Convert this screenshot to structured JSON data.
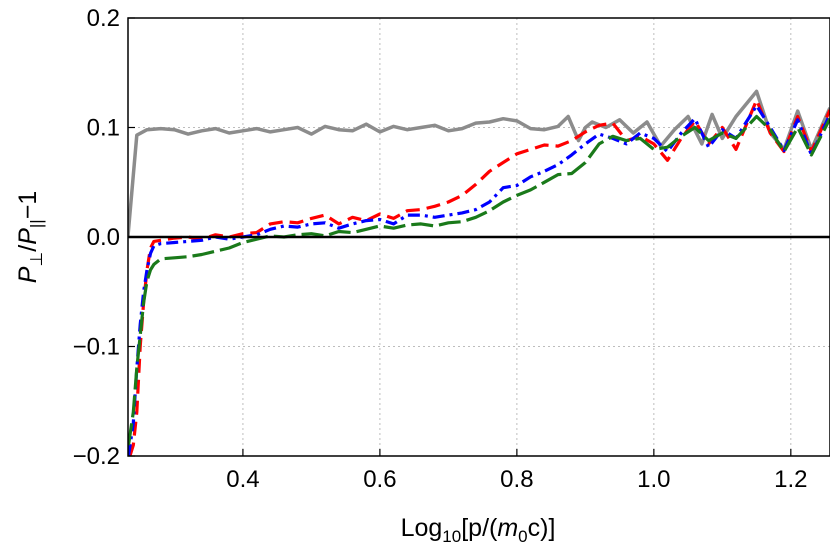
{
  "chart_data": {
    "type": "line",
    "title": "",
    "xlabel": {
      "base": "Log",
      "sub": "10",
      "rest_before_m": "[p/(",
      "m": "m",
      "m_sub": "0",
      "rest_after_m": "c)]"
    },
    "ylabel": {
      "p1": "P",
      "p1_sub": "⊥",
      "slash": "/",
      "p2": "P",
      "p2_sub": "||",
      "tail": "−1"
    },
    "xlim": [
      0.2322,
      1.2572
    ],
    "ylim": [
      -0.2,
      0.2
    ],
    "grid": true,
    "x_ticks": [
      {
        "value": 0.4,
        "label": "0.4"
      },
      {
        "value": 0.6,
        "label": "0.6"
      },
      {
        "value": 0.8,
        "label": "0.8"
      },
      {
        "value": 1.0,
        "label": "1.0"
      },
      {
        "value": 1.2,
        "label": "1.2"
      }
    ],
    "y_ticks": [
      {
        "value": 0.2,
        "label": "0.2"
      },
      {
        "value": 0.1,
        "label": "0.1"
      },
      {
        "value": 0.0,
        "label": "0.0"
      },
      {
        "value": -0.1,
        "label": "−0.1"
      },
      {
        "value": -0.2,
        "label": "−0.2"
      }
    ],
    "reference_line": {
      "y": 0.0,
      "color": "#000000"
    },
    "series": [
      {
        "name": "gray-solid",
        "color": "#8c8c8c",
        "dash": "",
        "x": [
          0.232,
          0.245,
          0.26,
          0.28,
          0.3,
          0.32,
          0.34,
          0.36,
          0.38,
          0.4,
          0.42,
          0.44,
          0.46,
          0.48,
          0.5,
          0.52,
          0.54,
          0.56,
          0.58,
          0.6,
          0.62,
          0.64,
          0.66,
          0.68,
          0.7,
          0.72,
          0.74,
          0.76,
          0.78,
          0.8,
          0.82,
          0.84,
          0.86,
          0.875,
          0.89,
          0.9,
          0.91,
          0.93,
          0.95,
          0.97,
          0.99,
          1.01,
          1.03,
          1.05,
          1.07,
          1.085,
          1.1,
          1.12,
          1.15,
          1.17,
          1.19,
          1.21,
          1.23,
          1.257
        ],
        "y": [
          0.0,
          0.093,
          0.098,
          0.099,
          0.098,
          0.094,
          0.097,
          0.099,
          0.095,
          0.097,
          0.099,
          0.096,
          0.098,
          0.1,
          0.094,
          0.101,
          0.098,
          0.097,
          0.103,
          0.096,
          0.101,
          0.098,
          0.1,
          0.102,
          0.097,
          0.099,
          0.104,
          0.105,
          0.108,
          0.106,
          0.099,
          0.098,
          0.101,
          0.11,
          0.088,
          0.1,
          0.105,
          0.1,
          0.107,
          0.095,
          0.105,
          0.083,
          0.098,
          0.11,
          0.085,
          0.112,
          0.09,
          0.11,
          0.133,
          0.095,
          0.08,
          0.115,
          0.08,
          0.118
        ]
      },
      {
        "name": "red-dashed",
        "color": "#ff0000",
        "dash": "14,7",
        "x": [
          0.235,
          0.24,
          0.245,
          0.25,
          0.255,
          0.26,
          0.265,
          0.27,
          0.28,
          0.3,
          0.32,
          0.34,
          0.36,
          0.38,
          0.4,
          0.42,
          0.44,
          0.46,
          0.48,
          0.5,
          0.52,
          0.54,
          0.56,
          0.58,
          0.6,
          0.62,
          0.64,
          0.66,
          0.68,
          0.7,
          0.72,
          0.74,
          0.76,
          0.78,
          0.8,
          0.82,
          0.84,
          0.86,
          0.88,
          0.9,
          0.92,
          0.94,
          0.96,
          0.98,
          1.0,
          1.02,
          1.04,
          1.06,
          1.08,
          1.1,
          1.12,
          1.15,
          1.17,
          1.19,
          1.21,
          1.23,
          1.257
        ],
        "y": [
          -0.2,
          -0.19,
          -0.16,
          -0.1,
          -0.06,
          -0.03,
          -0.01,
          -0.004,
          -0.003,
          -0.001,
          0.0,
          -0.002,
          0.002,
          0.0,
          0.003,
          0.004,
          0.012,
          0.014,
          0.013,
          0.017,
          0.02,
          0.012,
          0.018,
          0.015,
          0.021,
          0.017,
          0.024,
          0.025,
          0.028,
          0.032,
          0.038,
          0.048,
          0.06,
          0.068,
          0.076,
          0.08,
          0.084,
          0.083,
          0.088,
          0.096,
          0.102,
          0.104,
          0.088,
          0.092,
          0.085,
          0.07,
          0.09,
          0.106,
          0.085,
          0.1,
          0.08,
          0.125,
          0.095,
          0.078,
          0.11,
          0.078,
          0.116
        ]
      },
      {
        "name": "blue-dashdot",
        "color": "#0000ff",
        "dash": "12,5,3,5",
        "x": [
          0.233,
          0.24,
          0.245,
          0.25,
          0.255,
          0.26,
          0.265,
          0.27,
          0.28,
          0.3,
          0.32,
          0.34,
          0.36,
          0.38,
          0.4,
          0.42,
          0.44,
          0.46,
          0.48,
          0.5,
          0.52,
          0.54,
          0.56,
          0.58,
          0.6,
          0.62,
          0.64,
          0.66,
          0.68,
          0.7,
          0.72,
          0.74,
          0.76,
          0.78,
          0.8,
          0.82,
          0.84,
          0.86,
          0.88,
          0.9,
          0.92,
          0.94,
          0.96,
          0.98,
          1.0,
          1.02,
          1.04,
          1.06,
          1.08,
          1.1,
          1.12,
          1.15,
          1.17,
          1.19,
          1.21,
          1.23,
          1.257
        ],
        "y": [
          -0.2,
          -0.17,
          -0.12,
          -0.08,
          -0.05,
          -0.03,
          -0.015,
          -0.008,
          -0.006,
          -0.005,
          -0.004,
          -0.003,
          0.0,
          -0.002,
          0.0,
          0.002,
          0.007,
          0.01,
          0.009,
          0.012,
          0.013,
          0.008,
          0.012,
          0.015,
          0.016,
          0.012,
          0.02,
          0.02,
          0.018,
          0.02,
          0.022,
          0.025,
          0.032,
          0.045,
          0.047,
          0.055,
          0.06,
          0.066,
          0.075,
          0.085,
          0.094,
          0.09,
          0.085,
          0.095,
          0.09,
          0.078,
          0.095,
          0.108,
          0.082,
          0.098,
          0.09,
          0.12,
          0.1,
          0.079,
          0.107,
          0.075,
          0.112
        ]
      },
      {
        "name": "green-dashed",
        "color": "#1a7a1a",
        "dash": "22,6",
        "x": [
          0.233,
          0.24,
          0.245,
          0.25,
          0.255,
          0.26,
          0.265,
          0.27,
          0.28,
          0.3,
          0.32,
          0.34,
          0.36,
          0.38,
          0.4,
          0.42,
          0.44,
          0.46,
          0.48,
          0.5,
          0.52,
          0.54,
          0.56,
          0.58,
          0.6,
          0.62,
          0.64,
          0.66,
          0.68,
          0.7,
          0.72,
          0.74,
          0.76,
          0.78,
          0.8,
          0.82,
          0.84,
          0.86,
          0.88,
          0.9,
          0.92,
          0.94,
          0.96,
          0.98,
          1.0,
          1.02,
          1.04,
          1.06,
          1.08,
          1.1,
          1.12,
          1.15,
          1.17,
          1.19,
          1.21,
          1.23,
          1.257
        ],
        "y": [
          -0.19,
          -0.16,
          -0.12,
          -0.09,
          -0.06,
          -0.04,
          -0.03,
          -0.025,
          -0.02,
          -0.019,
          -0.018,
          -0.016,
          -0.013,
          -0.01,
          -0.005,
          -0.002,
          0.001,
          0.0,
          0.002,
          0.003,
          0.001,
          0.005,
          0.004,
          0.007,
          0.01,
          0.008,
          0.011,
          0.012,
          0.01,
          0.013,
          0.014,
          0.018,
          0.024,
          0.032,
          0.038,
          0.043,
          0.05,
          0.057,
          0.058,
          0.068,
          0.085,
          0.092,
          0.088,
          0.09,
          0.08,
          0.082,
          0.092,
          0.1,
          0.088,
          0.095,
          0.09,
          0.11,
          0.098,
          0.078,
          0.1,
          0.075,
          0.108
        ]
      }
    ]
  }
}
